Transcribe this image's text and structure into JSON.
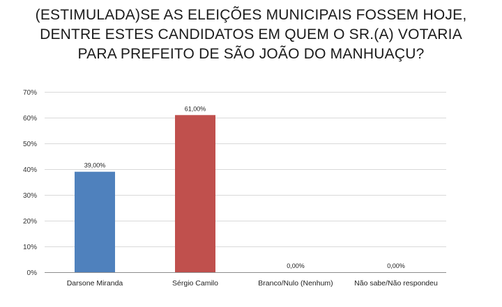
{
  "chart_data": {
    "type": "bar",
    "title_lines": [
      "(ESTIMULADA)SE AS ELEIÇÕES MUNICIPAIS FOSSEM HOJE,",
      "DENTRE ESTES CANDIDATOS EM QUEM O SR.(A) VOTARIA",
      "PARA PREFEITO DE SÃO JOÃO DO MANHUAÇU?"
    ],
    "categories": [
      "Darsone Miranda",
      "Sérgio Camilo",
      "Branco/Nulo (Nenhum)",
      "Não sabe/Não respondeu"
    ],
    "values": [
      39,
      61,
      0,
      0
    ],
    "data_labels": [
      "39,00%",
      "61,00%",
      "0,00%",
      "0,00%"
    ],
    "bar_colors": [
      "#4f81bd",
      "#c0504d",
      "#4f81bd",
      "#4f81bd"
    ],
    "ylim": [
      0,
      70
    ],
    "y_ticks": [
      0,
      10,
      20,
      30,
      40,
      50,
      60,
      70
    ],
    "y_tick_labels": [
      "0%",
      "10%",
      "20%",
      "30%",
      "40%",
      "50%",
      "60%",
      "70%"
    ],
    "grid": true,
    "legend": "none",
    "xlabel": "",
    "ylabel": ""
  }
}
